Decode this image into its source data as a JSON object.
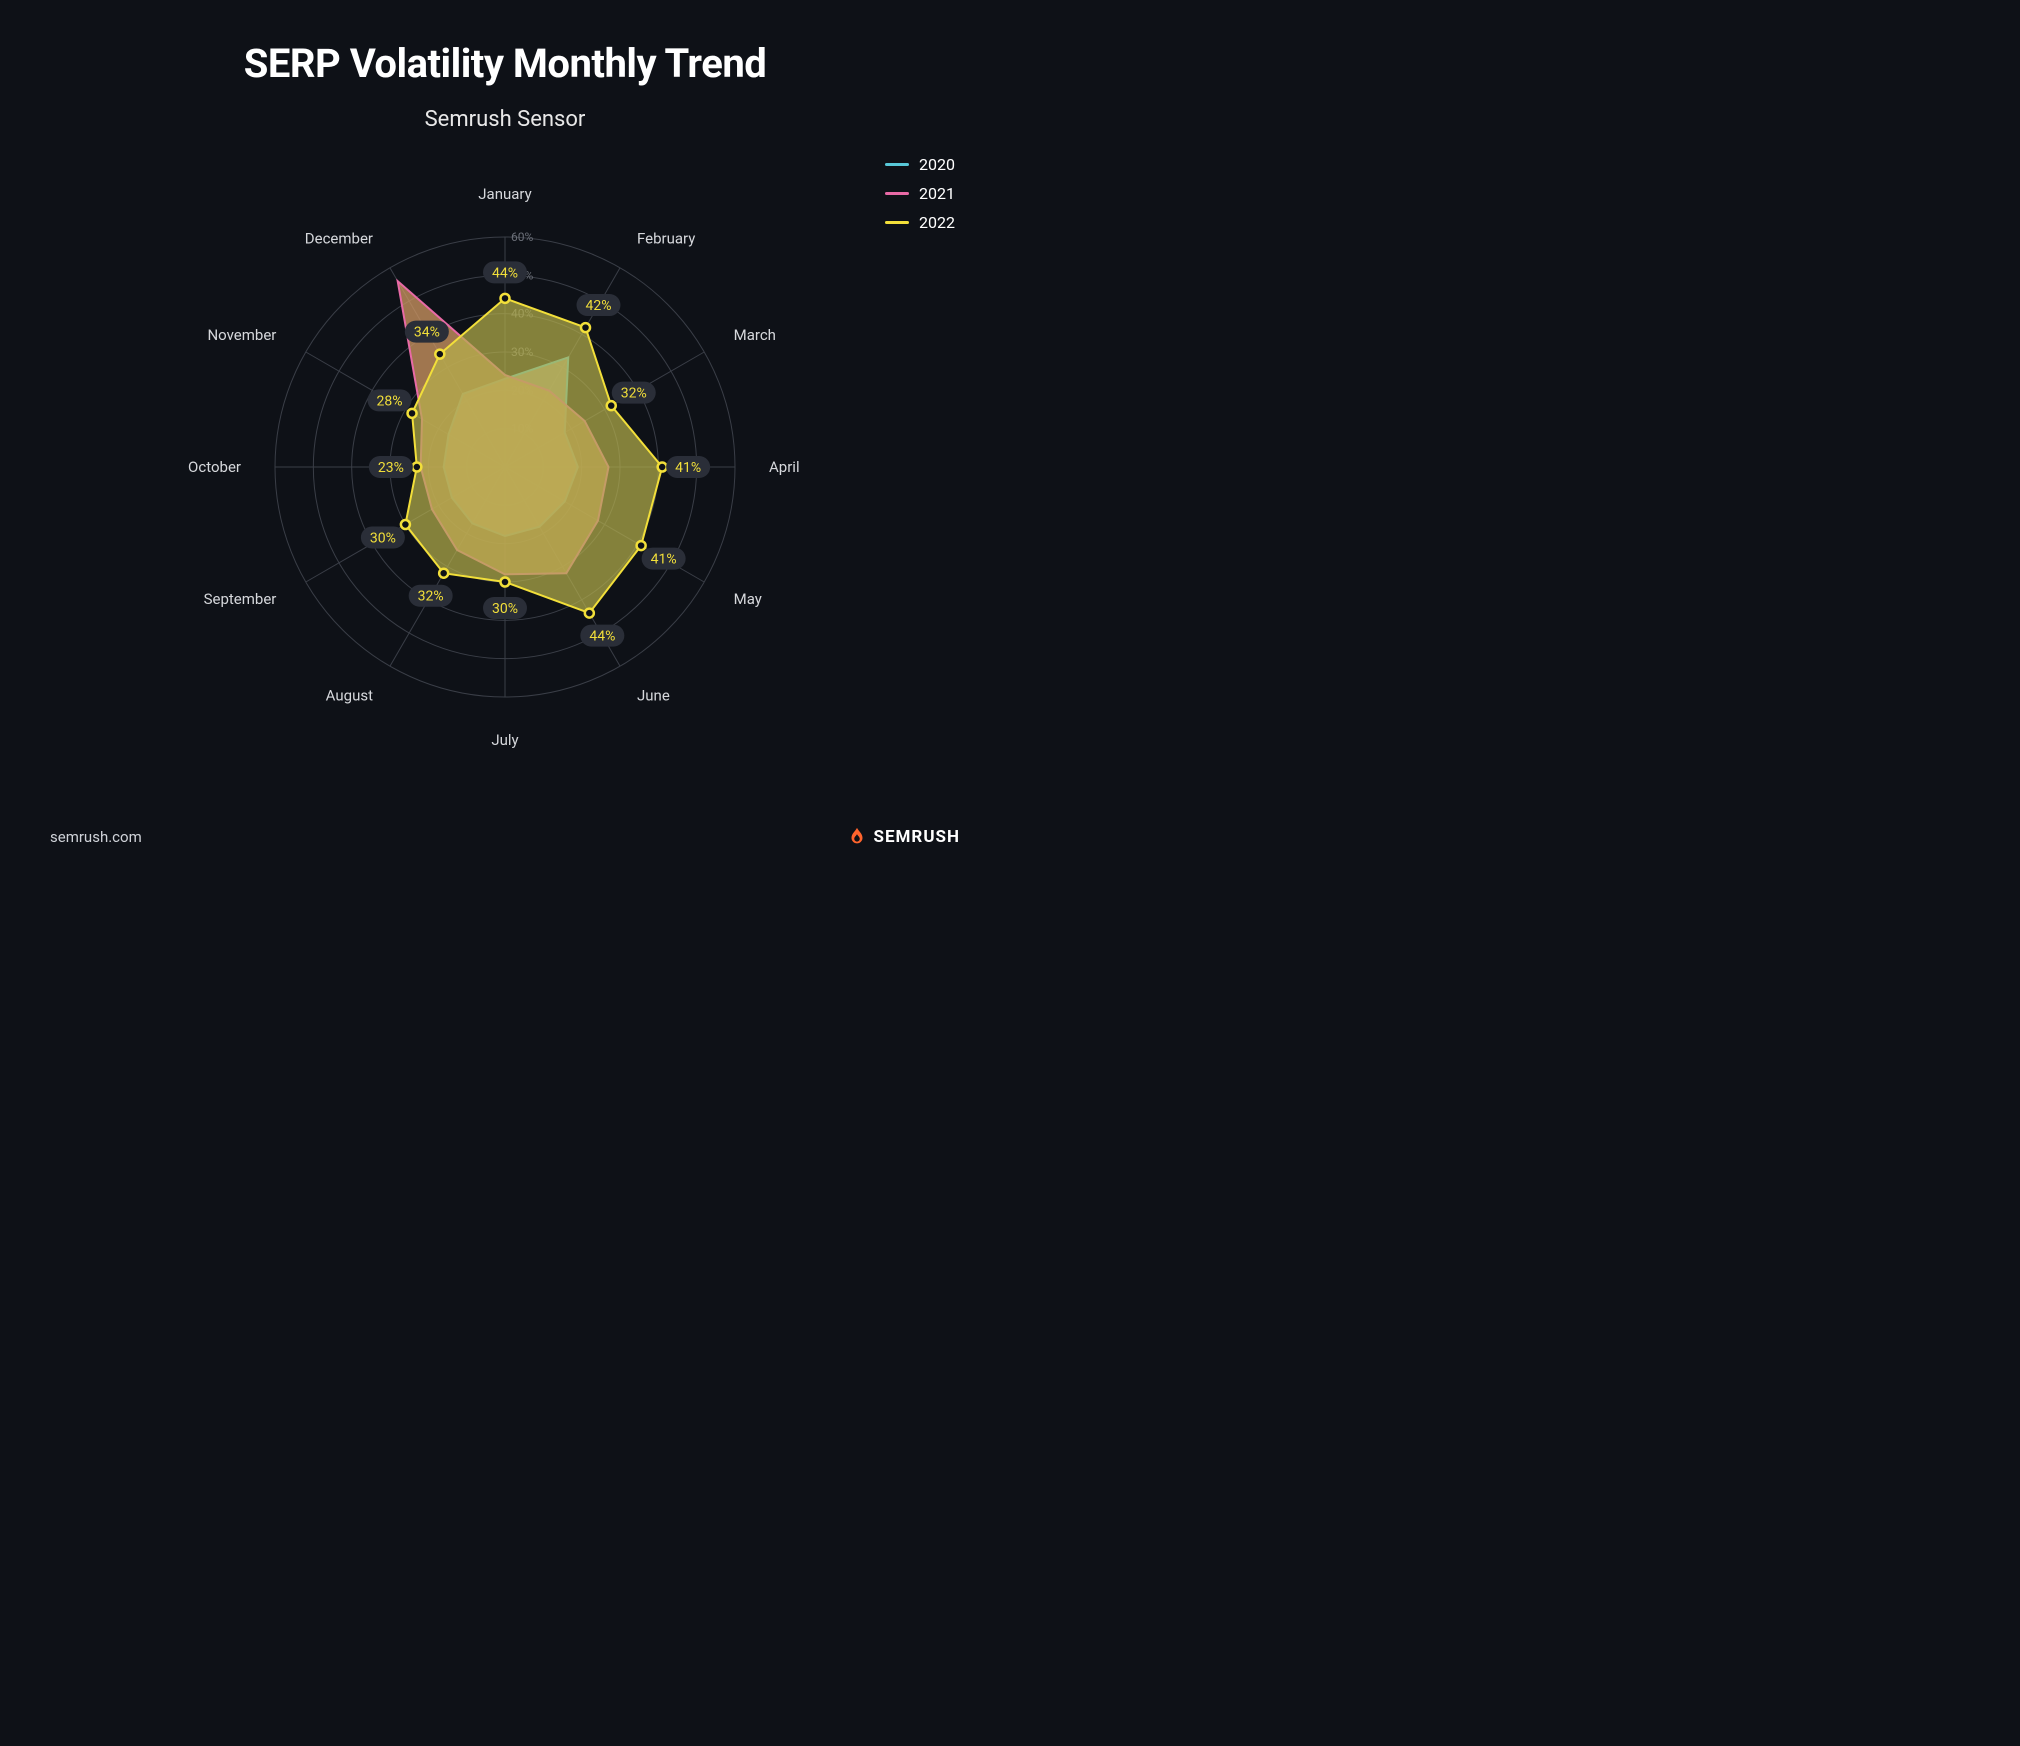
{
  "title": "SERP Volatility Monthly Trend",
  "subtitle": "Semrush Sensor",
  "footer_url": "semrush.com",
  "brand_name": "SEMRUSH",
  "brand_icon_color": "#ff642d",
  "chart": {
    "type": "radar",
    "background_color": "#0e1117",
    "grid_color": "#3a3e47",
    "axis_label_color": "#d6d8dc",
    "ring_label_color": "#6b6f78",
    "categories": [
      "January",
      "February",
      "March",
      "April",
      "May",
      "June",
      "July",
      "August",
      "September",
      "October",
      "November",
      "December"
    ],
    "max": 60,
    "ring_step": 10,
    "ring_labels": [
      "10%",
      "20%",
      "30%",
      "40%",
      "50%",
      "60%"
    ],
    "series": [
      {
        "name": "2020",
        "color": "#58c8d8",
        "fill": "#b8b094",
        "fill_opacity": 0.85,
        "values": [
          23,
          33,
          18,
          19,
          18,
          18,
          18,
          17,
          16,
          16,
          17,
          22
        ]
      },
      {
        "name": "2021",
        "color": "#e86aa6",
        "fill": "#d29863",
        "fill_opacity": 0.75,
        "values": [
          24,
          23,
          24,
          27,
          28,
          32,
          28,
          25,
          22,
          22,
          25,
          56
        ]
      },
      {
        "name": "2022",
        "color": "#f2df3a",
        "fill": "#b6b04c",
        "fill_opacity": 0.7,
        "values": [
          44,
          42,
          32,
          41,
          41,
          44,
          30,
          32,
          30,
          23,
          28,
          34
        ],
        "show_labels": true,
        "label_bg": "#2a2e38",
        "label_color": "#f2df3a"
      }
    ],
    "legend": [
      {
        "label": "2020",
        "color": "#58c8d8"
      },
      {
        "label": "2021",
        "color": "#e86aa6"
      },
      {
        "label": "2022",
        "color": "#f2df3a"
      }
    ]
  }
}
